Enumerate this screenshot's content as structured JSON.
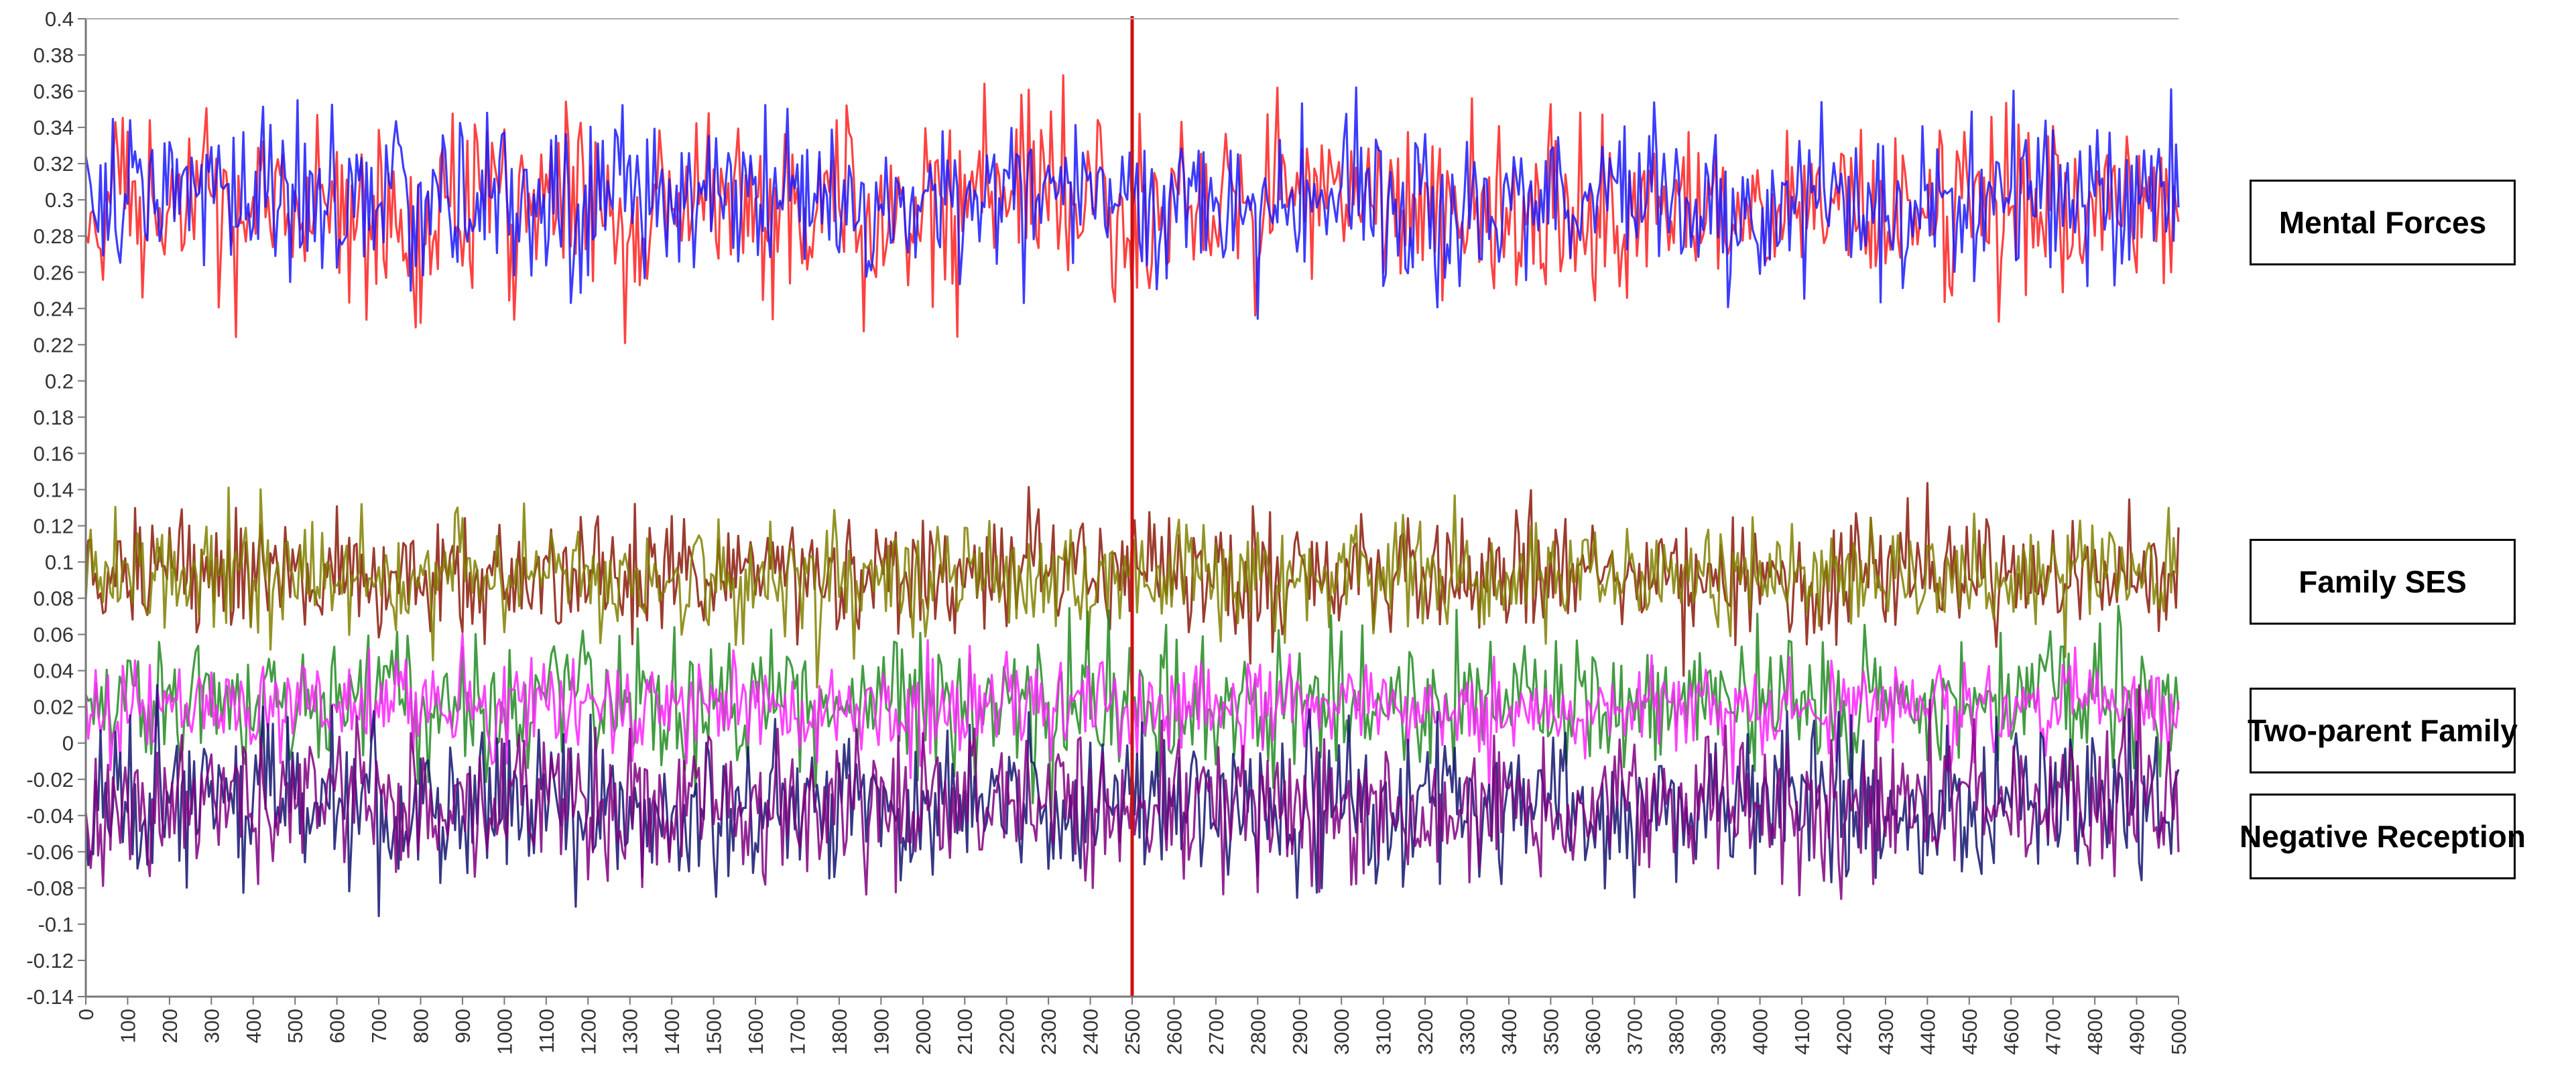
{
  "chart_data": {
    "type": "line",
    "title": "",
    "xlabel": "",
    "ylabel": "",
    "xlim": [
      0,
      5000
    ],
    "ylim": [
      -0.14,
      0.4
    ],
    "x_ticks": [
      0,
      100,
      200,
      300,
      400,
      500,
      600,
      700,
      800,
      900,
      1000,
      1100,
      1200,
      1300,
      1400,
      1500,
      1600,
      1700,
      1800,
      1900,
      2000,
      2100,
      2200,
      2300,
      2400,
      2500,
      2600,
      2700,
      2800,
      2900,
      3000,
      3100,
      3200,
      3300,
      3400,
      3500,
      3600,
      3700,
      3800,
      3900,
      4000,
      4100,
      4200,
      4300,
      4400,
      4500,
      4600,
      4700,
      4800,
      4900,
      5000
    ],
    "y_ticks": [
      "0.4",
      "0.38",
      "0.36",
      "0.34",
      "0.32",
      "0.3",
      "0.28",
      "0.26",
      "0.24",
      "0.22",
      "0.2",
      "0.18",
      "0.16",
      "0.14",
      "0.12",
      "0.1",
      "0.08",
      "0.06",
      "0.04",
      "0.02",
      "0",
      "-0.02",
      "-0.04",
      "-0.06",
      "-0.08",
      "-0.1",
      "-0.12",
      "-0.14"
    ],
    "grid": false,
    "vertical_marker": {
      "x": 2500,
      "color": "#cc1111"
    },
    "series": [
      {
        "color": "#ff2020",
        "mean": 0.295,
        "spread": 0.024,
        "samples": 850
      },
      {
        "color": "#1a1aff",
        "mean": 0.3,
        "spread": 0.022,
        "samples": 850
      },
      {
        "color": "#8b1a0a",
        "mean": 0.092,
        "spread": 0.017,
        "samples": 850
      },
      {
        "color": "#808000",
        "mean": 0.093,
        "spread": 0.015,
        "samples": 850
      },
      {
        "color": "#228b22",
        "mean": 0.022,
        "spread": 0.018,
        "samples": 800
      },
      {
        "color": "#ff22ff",
        "mean": 0.02,
        "spread": 0.013,
        "samples": 850
      },
      {
        "color": "#141470",
        "mean": -0.035,
        "spread": 0.021,
        "samples": 850
      },
      {
        "color": "#800080",
        "mean": -0.034,
        "spread": 0.02,
        "samples": 850
      }
    ],
    "group_labels": [
      {
        "text": "Mental Forces"
      },
      {
        "text": "Family SES"
      },
      {
        "text": "Two-parent Family"
      },
      {
        "text": "Negative Reception"
      }
    ]
  }
}
